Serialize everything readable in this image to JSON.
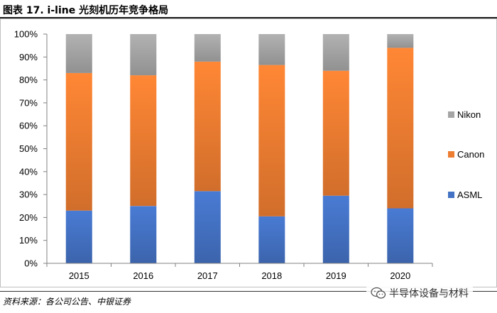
{
  "header": {
    "title": "图表 17. i-line 光刻机历年竞争格局"
  },
  "footer": {
    "source": "资料来源：各公司公告、中银证券"
  },
  "watermark": {
    "text": "半导体设备与材料",
    "icon": "wechat-icon"
  },
  "colors": {
    "ASML": "#4472C4",
    "Canon": "#ED7D31",
    "Nikon": "#A5A5A5"
  },
  "chart_data": {
    "type": "bar",
    "stacked": true,
    "categories": [
      "2015",
      "2016",
      "2017",
      "2018",
      "2019",
      "2020"
    ],
    "series": [
      {
        "name": "ASML",
        "values": [
          23,
          25,
          31.5,
          20.5,
          29.5,
          24
        ]
      },
      {
        "name": "Canon",
        "values": [
          60,
          57,
          56.5,
          66,
          54.5,
          70
        ]
      },
      {
        "name": "Nikon",
        "values": [
          17,
          18,
          12,
          13.5,
          16,
          6
        ]
      }
    ],
    "ylim": [
      0,
      100
    ],
    "yticks": [
      "0%",
      "10%",
      "20%",
      "30%",
      "40%",
      "50%",
      "60%",
      "70%",
      "80%",
      "90%",
      "100%"
    ],
    "legend": [
      "Nikon",
      "Canon",
      "ASML"
    ],
    "legend_position": "right",
    "grid": false
  }
}
